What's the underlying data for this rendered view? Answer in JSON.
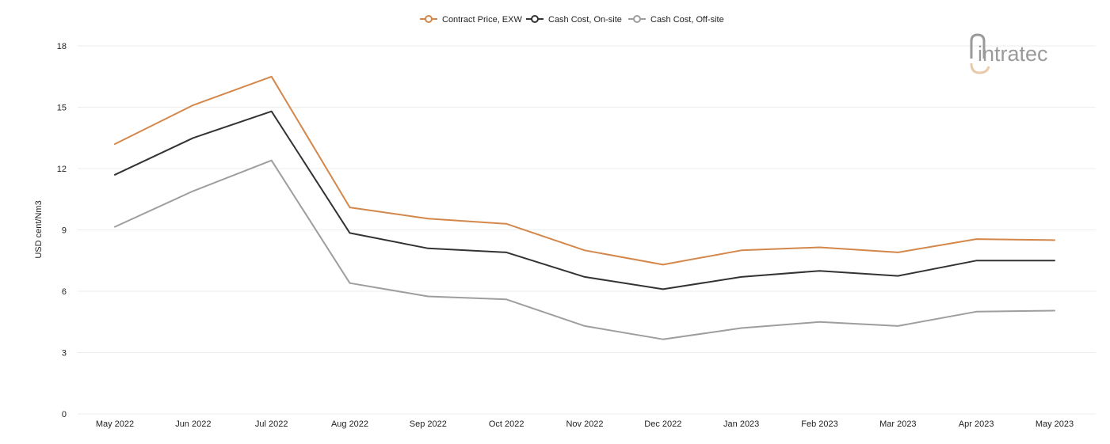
{
  "chart_data": {
    "type": "line",
    "title": "",
    "xlabel": "",
    "ylabel": "USD cent/Nm3",
    "categories": [
      "May 2022",
      "Jun 2022",
      "Jul 2022",
      "Aug 2022",
      "Sep 2022",
      "Oct 2022",
      "Nov 2022",
      "Dec 2022",
      "Jan 2023",
      "Feb 2023",
      "Mar 2023",
      "Apr 2023",
      "May 2023"
    ],
    "ylim": [
      0,
      18
    ],
    "yticks": [
      0,
      3,
      6,
      9,
      12,
      15,
      18
    ],
    "grid": true,
    "legend_position": "top-center",
    "series": [
      {
        "name": "Contract Price, EXW",
        "color": "#d4874a",
        "values": [
          13.2,
          15.1,
          16.5,
          10.1,
          9.55,
          9.3,
          8.0,
          7.3,
          8.0,
          8.15,
          7.9,
          8.55,
          8.5
        ]
      },
      {
        "name": "Cash Cost, On-site",
        "color": "#333333",
        "values": [
          11.7,
          13.5,
          14.8,
          8.85,
          8.1,
          7.9,
          6.7,
          6.1,
          6.7,
          7.0,
          6.75,
          7.5,
          7.5
        ]
      },
      {
        "name": "Cash Cost, Off-site",
        "color": "#9e9e9e",
        "values": [
          9.15,
          10.9,
          12.4,
          6.4,
          5.75,
          5.6,
          4.3,
          3.65,
          4.2,
          4.5,
          4.3,
          5.0,
          5.05
        ]
      }
    ]
  },
  "logo": {
    "text": "intratec",
    "color": "#9a9a9a",
    "accent": "#e8c9a8"
  }
}
